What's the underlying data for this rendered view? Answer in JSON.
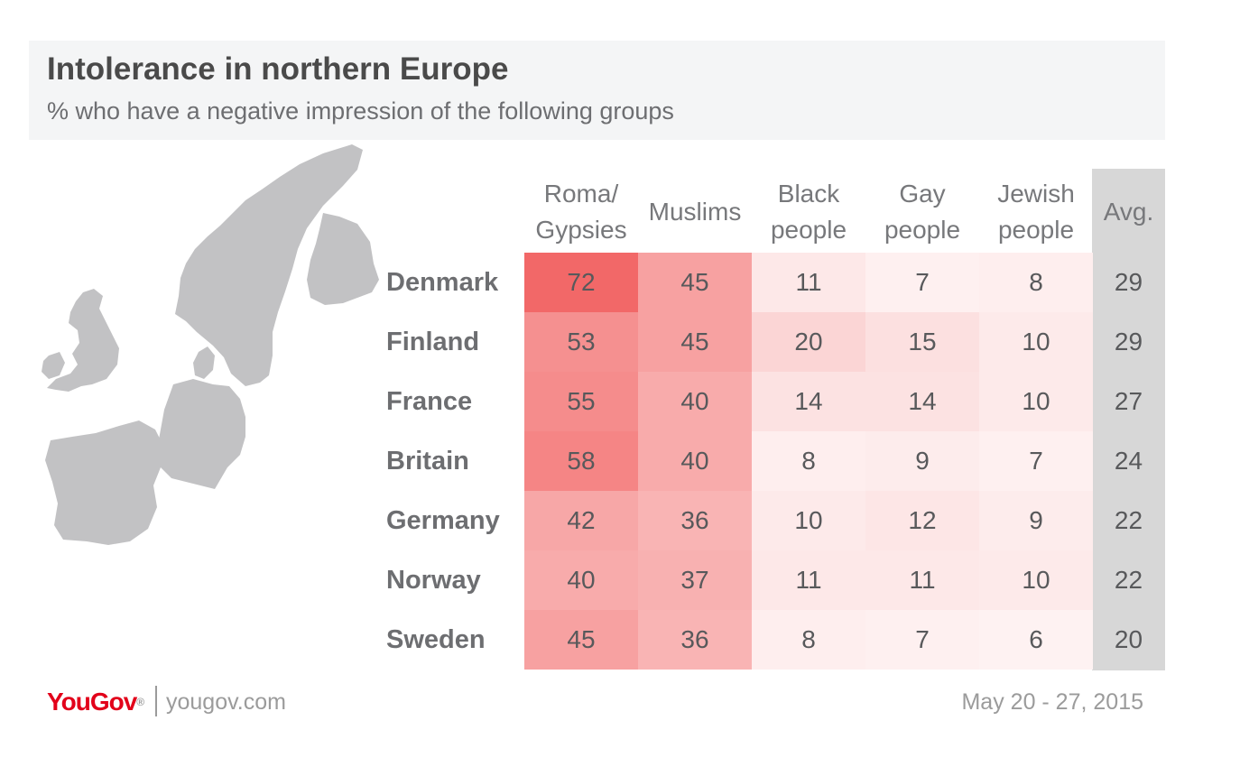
{
  "header": {
    "title": "Intolerance in northern Europe",
    "subtitle": "% who have a negative impression of the following groups"
  },
  "chart_data": {
    "type": "heatmap",
    "title": "Intolerance in northern Europe",
    "subtitle": "% who have a negative impression of the following groups",
    "columns": [
      "Roma/ Gypsies",
      "Muslims",
      "Black people",
      "Gay people",
      "Jewish people"
    ],
    "column_lines": [
      [
        "Roma/",
        "Gypsies"
      ],
      [
        "Muslims"
      ],
      [
        "Black",
        "people"
      ],
      [
        "Gay",
        "people"
      ],
      [
        "Jewish",
        "people"
      ]
    ],
    "avg_label": "Avg.",
    "rows": [
      "Denmark",
      "Finland",
      "France",
      "Britain",
      "Germany",
      "Norway",
      "Sweden"
    ],
    "values": [
      [
        72,
        45,
        11,
        7,
        8
      ],
      [
        53,
        45,
        20,
        15,
        10
      ],
      [
        55,
        40,
        14,
        14,
        10
      ],
      [
        58,
        40,
        8,
        9,
        7
      ],
      [
        42,
        36,
        10,
        12,
        9
      ],
      [
        40,
        37,
        11,
        11,
        10
      ],
      [
        45,
        36,
        8,
        7,
        6
      ]
    ],
    "avg": [
      29,
      29,
      27,
      24,
      22,
      22,
      20
    ],
    "color_scale": {
      "low": "#ffffff",
      "high": "#f26868",
      "max_value": 72
    },
    "avg_band_color": "#d7d7d7"
  },
  "map": {
    "icon": "northern-europe-map",
    "fill": "#c2c2c4"
  },
  "footer": {
    "logo_you": "You",
    "logo_gov": "Gov",
    "logo_mark": "®",
    "site": "yougov.com",
    "date": "May 20 - 27, 2015"
  }
}
